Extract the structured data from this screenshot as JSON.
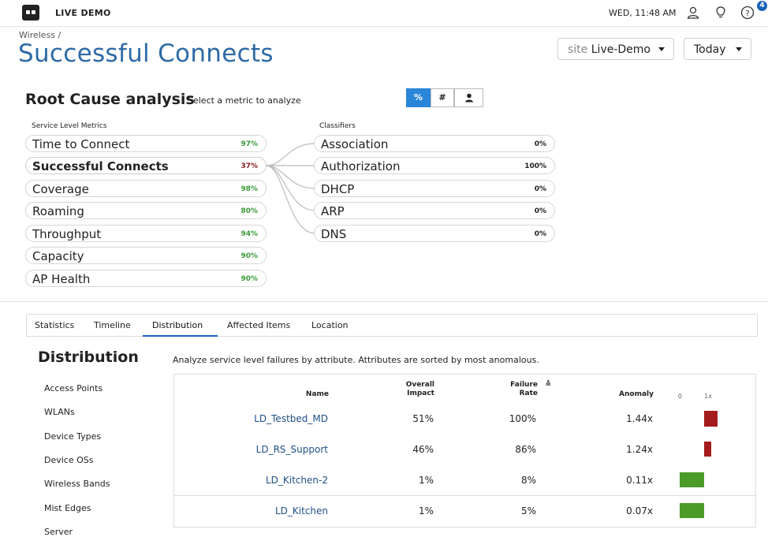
{
  "app": {
    "brand": "LIVE DEMO",
    "clock": "WED, 11:48 AM",
    "help_badge": "4",
    "icons": [
      "user-icon",
      "lightbulb-icon",
      "help-icon"
    ]
  },
  "header": {
    "breadcrumb": "Wireless /",
    "title": "Successful Connects",
    "site_label": "site",
    "site_value": "Live-Demo",
    "date_value": "Today"
  },
  "rca": {
    "title": "Root Cause analysis",
    "subtitle": "Select a metric to analyze",
    "toggles": [
      "%",
      "#",
      "user-icon"
    ],
    "active_toggle": "%"
  },
  "metrics": {
    "heading": "Service Level Metrics",
    "items": [
      {
        "name": "Time to Connect",
        "value": "97%",
        "color": "#3a9a3a"
      },
      {
        "name": "Successful Connects",
        "value": "37%",
        "color": "#8b1a1a"
      },
      {
        "name": "Coverage",
        "value": "98%",
        "color": "#3a9a3a"
      },
      {
        "name": "Roaming",
        "value": "80%",
        "color": "#3a9a3a"
      },
      {
        "name": "Throughput",
        "value": "94%",
        "color": "#3a9a3a"
      },
      {
        "name": "Capacity",
        "value": "90%",
        "color": "#3a9a3a"
      },
      {
        "name": "AP Health",
        "value": "90%",
        "color": "#3a9a3a"
      }
    ]
  },
  "classifiers": {
    "heading": "Classifiers",
    "items": [
      {
        "name": "Association",
        "value": "0%"
      },
      {
        "name": "Authorization",
        "value": "100%"
      },
      {
        "name": "DHCP",
        "value": "0%"
      },
      {
        "name": "ARP",
        "value": "0%"
      },
      {
        "name": "DNS",
        "value": "0%"
      }
    ]
  },
  "tabs": [
    "Statistics",
    "Timeline",
    "Distribution",
    "Affected Items",
    "Location"
  ],
  "active_tab": "Distribution",
  "distribution": {
    "title": "Distribution",
    "description": "Analyze service level failures by attribute. Attributes are sorted by most anomalous.",
    "attributes": [
      "Access Points",
      "WLANs",
      "Device Types",
      "Device OSs",
      "Wireless Bands",
      "Mist Edges",
      "Server"
    ],
    "columns": {
      "name": "Name",
      "impact": "Overall Impact",
      "failure": "Failure Rate",
      "anomaly": "Anomaly",
      "scale_min": "0",
      "scale_max": "1x"
    },
    "rows": [
      {
        "name": "LD_Testbed_MD",
        "impact": "51%",
        "failure": "100%",
        "anomaly": "1.44x",
        "anomaly_value": 1.44,
        "color": "#a31b1b"
      },
      {
        "name": "LD_RS_Support",
        "impact": "46%",
        "failure": "86%",
        "anomaly": "1.24x",
        "anomaly_value": 1.24,
        "color": "#a31b1b"
      },
      {
        "name": "LD_Kitchen-2",
        "impact": "1%",
        "failure": "8%",
        "anomaly": "0.11x",
        "anomaly_value": 0.11,
        "color": "#4c9a2a"
      },
      {
        "name": "LD_Kitchen",
        "impact": "1%",
        "failure": "5%",
        "anomaly": "0.07x",
        "anomaly_value": 0.07,
        "color": "#4c9a2a"
      }
    ]
  }
}
